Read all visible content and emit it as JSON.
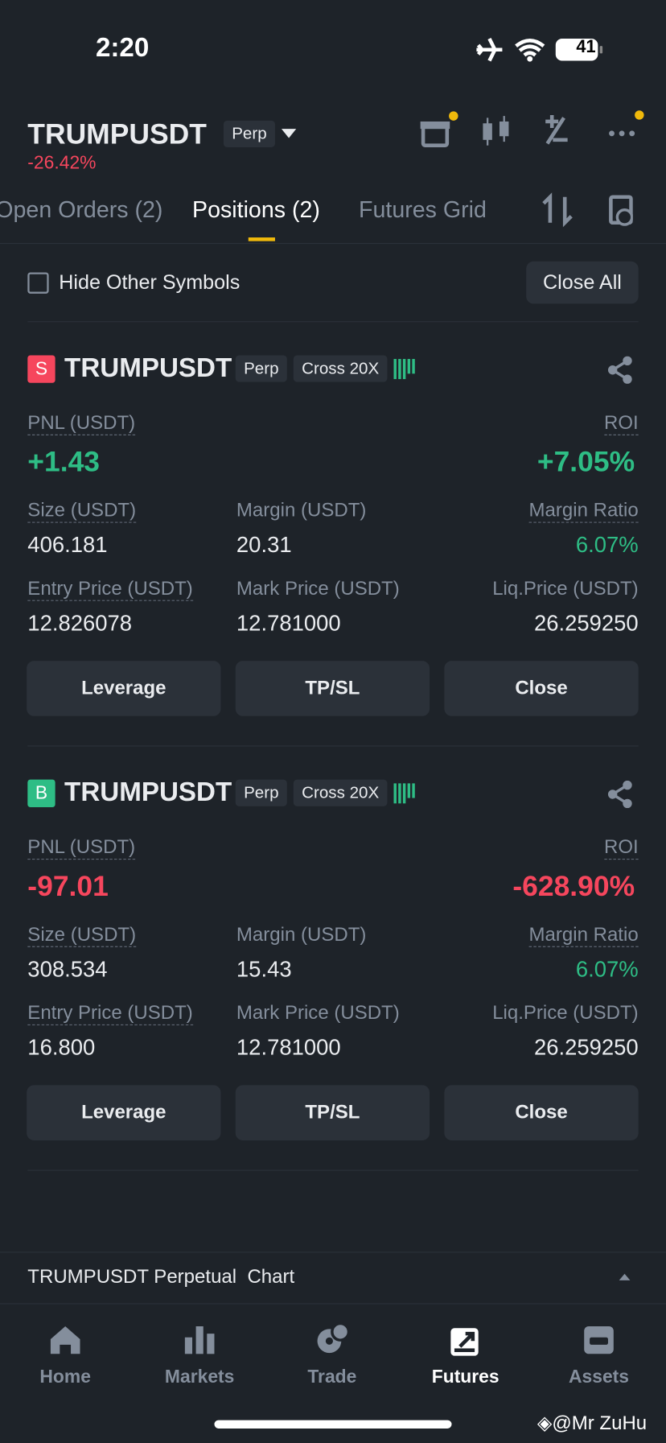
{
  "status_bar": {
    "time": "2:20",
    "battery": "41"
  },
  "header": {
    "symbol": "TRUMPUSDT",
    "badge": "Perp",
    "change": "-26.42%"
  },
  "tabs": [
    "Open Orders (2)",
    "Positions (2)",
    "Futures Grid"
  ],
  "filter": {
    "label": "Hide Other Symbols",
    "button": "Close All"
  },
  "positions": [
    {
      "side": "S",
      "symbol": "TRUMPUSDT",
      "badge": "Perp",
      "mode": "Cross 20X",
      "pnl_label": "PNL (USDT)",
      "pnl": "+1.43",
      "roi_label": "ROI",
      "roi": "+7.05%",
      "fields": [
        {
          "label": "Size (USDT)",
          "value": "406.181"
        },
        {
          "label": "Margin (USDT)",
          "value": "20.31"
        },
        {
          "label": "Margin Ratio",
          "value": "6.07%"
        },
        {
          "label": "Entry Price (USDT)",
          "value": "12.826078"
        },
        {
          "label": "Mark Price (USDT)",
          "value": "12.781000"
        },
        {
          "label": "Liq.Price (USDT)",
          "value": "26.259250"
        }
      ],
      "actions": [
        "Leverage",
        "TP/SL",
        "Close"
      ]
    },
    {
      "side": "B",
      "symbol": "TRUMPUSDT",
      "badge": "Perp",
      "mode": "Cross 20X",
      "pnl_label": "PNL (USDT)",
      "pnl": "-97.01",
      "roi_label": "ROI",
      "roi": "-628.90%",
      "fields": [
        {
          "label": "Size (USDT)",
          "value": "308.534"
        },
        {
          "label": "Margin (USDT)",
          "value": "15.43"
        },
        {
          "label": "Margin Ratio",
          "value": "6.07%"
        },
        {
          "label": "Entry Price (USDT)",
          "value": "16.800"
        },
        {
          "label": "Mark Price (USDT)",
          "value": "12.781000"
        },
        {
          "label": "Liq.Price (USDT)",
          "value": "26.259250"
        }
      ],
      "actions": [
        "Leverage",
        "TP/SL",
        "Close"
      ]
    }
  ],
  "chart_bar": "TRUMPUSDT Perpetual  Chart",
  "nav": [
    "Home",
    "Markets",
    "Trade",
    "Futures",
    "Assets"
  ],
  "watermark": "@Mr ZuHu"
}
